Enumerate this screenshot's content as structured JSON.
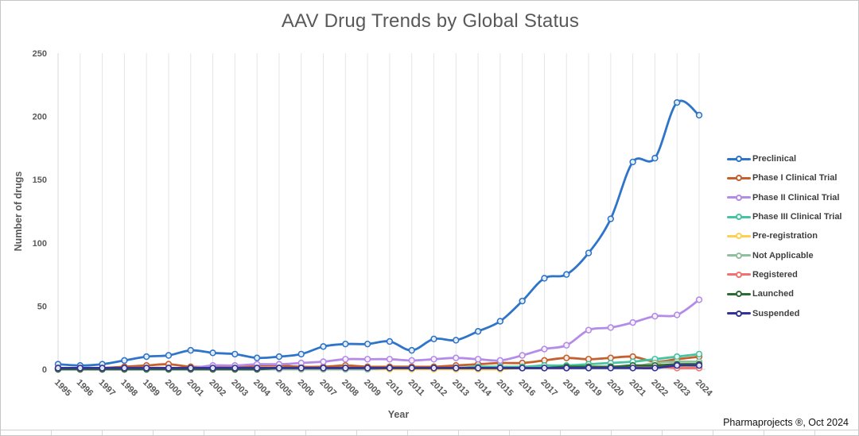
{
  "chart_data": {
    "type": "line",
    "title": "AAV Drug Trends by Global Status",
    "xlabel": "Year",
    "ylabel": "Number of drugs",
    "ylim": [
      0,
      250
    ],
    "yticks": [
      0,
      50,
      100,
      150,
      200,
      250
    ],
    "grid": "vertical-only",
    "legend_position": "right",
    "marker": "open-circle",
    "x": [
      1995,
      1996,
      1997,
      1998,
      1999,
      2000,
      2001,
      2002,
      2003,
      2004,
      2005,
      2006,
      2007,
      2008,
      2009,
      2010,
      2011,
      2012,
      2013,
      2014,
      2015,
      2016,
      2017,
      2018,
      2019,
      2020,
      2021,
      2022,
      2023,
      2024
    ],
    "series": [
      {
        "name": "Preclinical",
        "color": "#2E74C9",
        "values": [
          4,
          3,
          4,
          7,
          10,
          11,
          15,
          13,
          12,
          9,
          10,
          12,
          18,
          20,
          20,
          22,
          15,
          24,
          23,
          30,
          38,
          54,
          72,
          75,
          92,
          119,
          164,
          167,
          211,
          201
        ]
      },
      {
        "name": "Phase I Clinical Trial",
        "color": "#C2602E",
        "values": [
          1,
          1,
          1,
          2,
          3,
          4,
          2,
          2,
          2,
          3,
          3,
          2,
          2,
          3,
          2,
          2,
          2,
          2,
          3,
          4,
          5,
          5,
          7,
          9,
          8,
          9,
          10,
          6,
          8,
          10
        ]
      },
      {
        "name": "Phase II Clinical Trial",
        "color": "#B48CE8",
        "values": [
          0,
          0,
          0,
          1,
          1,
          1,
          1,
          3,
          3,
          4,
          4,
          5,
          6,
          8,
          8,
          8,
          7,
          8,
          9,
          8,
          7,
          11,
          16,
          19,
          31,
          33,
          37,
          42,
          43,
          55
        ]
      },
      {
        "name": "Phase III Clinical Trial",
        "color": "#45C4A2",
        "values": [
          0,
          0,
          0,
          0,
          0,
          0,
          0,
          0,
          0,
          0,
          1,
          1,
          1,
          1,
          1,
          1,
          1,
          1,
          1,
          2,
          2,
          2,
          3,
          3,
          4,
          5,
          6,
          8,
          10,
          12
        ]
      },
      {
        "name": "Pre-registration",
        "color": "#FFD050",
        "values": [
          0,
          0,
          0,
          0,
          0,
          0,
          0,
          0,
          0,
          0,
          0,
          0,
          0,
          0,
          0,
          0,
          0,
          0,
          0,
          0,
          0,
          1,
          1,
          1,
          1,
          2,
          2,
          4,
          2,
          1
        ]
      },
      {
        "name": "Not Applicable",
        "color": "#90BF9E",
        "values": [
          0,
          0,
          0,
          0,
          0,
          0,
          0,
          0,
          0,
          0,
          0,
          0,
          0,
          0,
          0,
          1,
          1,
          1,
          1,
          1,
          1,
          1,
          1,
          1,
          1,
          2,
          2,
          5,
          6,
          6
        ]
      },
      {
        "name": "Registered",
        "color": "#F17070",
        "values": [
          1,
          0,
          0,
          0,
          1,
          1,
          0,
          0,
          0,
          1,
          1,
          1,
          1,
          1,
          1,
          1,
          1,
          1,
          1,
          1,
          1,
          1,
          1,
          1,
          2,
          2,
          2,
          2,
          1,
          1
        ]
      },
      {
        "name": "Launched",
        "color": "#2D6B34",
        "values": [
          0,
          0,
          0,
          0,
          0,
          0,
          0,
          0,
          0,
          0,
          1,
          1,
          1,
          1,
          1,
          1,
          1,
          1,
          1,
          1,
          1,
          1,
          1,
          2,
          2,
          2,
          3,
          3,
          4,
          4
        ]
      },
      {
        "name": "Suspended",
        "color": "#333399",
        "values": [
          1,
          1,
          1,
          1,
          1,
          1,
          1,
          1,
          1,
          1,
          1,
          1,
          1,
          1,
          1,
          1,
          1,
          1,
          1,
          1,
          1,
          1,
          1,
          1,
          1,
          1,
          1,
          1,
          3,
          3
        ]
      }
    ]
  },
  "footer": {
    "watermark": "Pharmaprojects ®, Oct 2024"
  }
}
